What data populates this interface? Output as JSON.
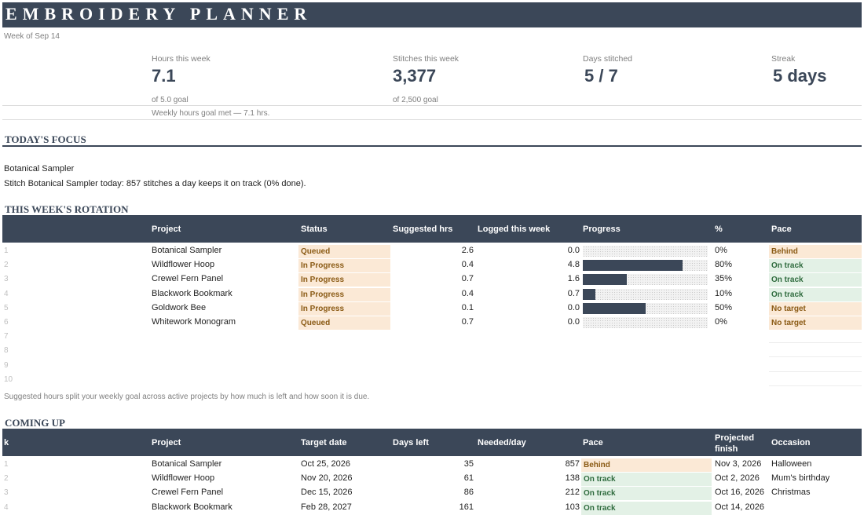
{
  "app_title": "EMBROIDERY PLANNER",
  "week_label": "Week of Sep 14",
  "kpis": {
    "hours": {
      "label": "Hours this week",
      "value": "7.1",
      "sub": "of 5.0 goal"
    },
    "stitches": {
      "label": "Stitches this week",
      "value": "3,377",
      "sub": "of 2,500 goal"
    },
    "days": {
      "label": "Days stitched",
      "value": "5 / 7"
    },
    "streak": {
      "label": "Streak",
      "value": "5 days"
    },
    "goal_note": "Weekly hours goal met — 7.1 hrs."
  },
  "focus": {
    "title": "TODAY'S FOCUS",
    "project": "Botanical Sampler",
    "message": "Stitch Botanical Sampler today: 857 stitches a day keeps it on track (0% done)."
  },
  "rotation": {
    "title": "THIS WEEK'S ROTATION",
    "headers": {
      "project": "Project",
      "status": "Status",
      "suggested": "Suggested hrs",
      "logged": "Logged this week",
      "progress": "Progress",
      "pct": "%",
      "pace": "Pace"
    },
    "rows": [
      {
        "n": "1",
        "project": "Botanical Sampler",
        "status": "Queued",
        "suggested": "2.6",
        "logged": "0.0",
        "progress": 0,
        "pct": "0%",
        "pace": "Behind",
        "pace_kind": "behind"
      },
      {
        "n": "2",
        "project": "Wildflower Hoop",
        "status": "In Progress",
        "suggested": "0.4",
        "logged": "4.8",
        "progress": 0.8,
        "pct": "80%",
        "pace": "On track",
        "pace_kind": "ontrack"
      },
      {
        "n": "3",
        "project": "Crewel Fern Panel",
        "status": "In Progress",
        "suggested": "0.7",
        "logged": "1.6",
        "progress": 0.35,
        "pct": "35%",
        "pace": "On track",
        "pace_kind": "ontrack"
      },
      {
        "n": "4",
        "project": "Blackwork Bookmark",
        "status": "In Progress",
        "suggested": "0.4",
        "logged": "0.7",
        "progress": 0.1,
        "pct": "10%",
        "pace": "On track",
        "pace_kind": "ontrack"
      },
      {
        "n": "5",
        "project": "Goldwork Bee",
        "status": "In Progress",
        "suggested": "0.1",
        "logged": "0.0",
        "progress": 0.5,
        "pct": "50%",
        "pace": "No target",
        "pace_kind": "notarget"
      },
      {
        "n": "6",
        "project": "Whitework Monogram",
        "status": "Queued",
        "suggested": "0.7",
        "logged": "0.0",
        "progress": 0,
        "pct": "0%",
        "pace": "No target",
        "pace_kind": "notarget"
      }
    ],
    "empty_rows": [
      "7",
      "8",
      "9",
      "10"
    ],
    "note": "Suggested hours split your weekly goal across active projects by how much is left and how soon it is due."
  },
  "coming_up": {
    "title": "COMING UP",
    "headers": {
      "k": "k",
      "project": "Project",
      "target": "Target date",
      "days_left": "Days left",
      "needed": "Needed/day",
      "pace": "Pace",
      "projected": "Projected finish",
      "occasion": "Occasion"
    },
    "rows": [
      {
        "n": "1",
        "project": "Botanical Sampler",
        "target": "Oct 25, 2026",
        "days_left": "35",
        "needed": "857",
        "pace": "Behind",
        "pace_kind": "behind",
        "projected": "Nov 3, 2026",
        "occasion": "Halloween"
      },
      {
        "n": "2",
        "project": "Wildflower Hoop",
        "target": "Nov 20, 2026",
        "days_left": "61",
        "needed": "138",
        "pace": "On track",
        "pace_kind": "ontrack",
        "projected": "Oct 2, 2026",
        "occasion": "Mum's birthday"
      },
      {
        "n": "3",
        "project": "Crewel Fern Panel",
        "target": "Dec 15, 2026",
        "days_left": "86",
        "needed": "212",
        "pace": "On track",
        "pace_kind": "ontrack",
        "projected": "Oct 16, 2026",
        "occasion": "Christmas"
      },
      {
        "n": "4",
        "project": "Blackwork Bookmark",
        "target": "Feb 28, 2027",
        "days_left": "161",
        "needed": "103",
        "pace": "On track",
        "pace_kind": "ontrack",
        "projected": "Oct 14, 2026",
        "occasion": ""
      }
    ]
  },
  "colors": {
    "header_bg": "#3b4758",
    "behind_bg": "#fbe9d6",
    "ontrack_bg": "#e3f1e6"
  }
}
